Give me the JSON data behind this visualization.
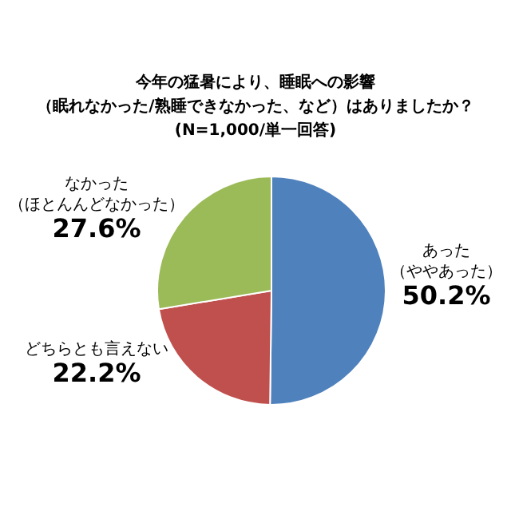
{
  "chart_data": {
    "type": "pie",
    "title": "今年の猛暑により、睡眠への影響（眠れなかった/熟睡できなかった、など）はありましたか？",
    "subtitle": "(N=1,000/単一回答)",
    "categories": [
      "あった（ややあった）",
      "どちらとも言えない",
      "なかった（ほとんんどなかった）"
    ],
    "values": [
      50.2,
      22.2,
      27.6
    ],
    "colors": [
      "#4f81bd",
      "#c0504d",
      "#9bbb59"
    ],
    "value_labels": [
      "50.2%",
      "22.2%",
      "27.6%"
    ]
  }
}
